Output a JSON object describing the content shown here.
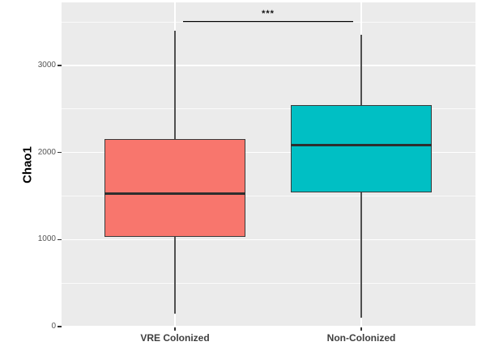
{
  "figure": {
    "background": "#FFFFFF",
    "panel_background": "#EBEBEB",
    "grid_color": "#FFFFFF"
  },
  "chart_data": {
    "type": "boxplot",
    "title": "",
    "xlabel": "",
    "ylabel": "Chao1",
    "ylim": [
      0,
      3720
    ],
    "yticks": [
      0,
      1000,
      2000,
      3000
    ],
    "ytick_labels": [
      "0",
      "1000",
      "2000",
      "3000"
    ],
    "y_minor_ticks": [
      500,
      1500,
      2500,
      3500
    ],
    "grid": true,
    "legend_position": "none",
    "categories": [
      "VRE Colonized",
      "Non-Colonized"
    ],
    "series": [
      {
        "name": "VRE Colonized",
        "color": "#F8766D",
        "whisker_low": 150,
        "q1": 1030,
        "median": 1530,
        "q3": 2150,
        "whisker_high": 3400,
        "outliers": []
      },
      {
        "name": "Non-Colonized",
        "color": "#00BFC4",
        "whisker_low": 100,
        "q1": 1540,
        "median": 2080,
        "q3": 2540,
        "whisker_high": 3350,
        "outliers": []
      }
    ],
    "annotation": {
      "label": "***",
      "y_value": 3510,
      "between": [
        "VRE Colonized",
        "Non-Colonized"
      ]
    },
    "style": {
      "box_border_color": "#3A3A3A",
      "median_color": "#2E2E2E",
      "whisker_color": "#4F4F4F",
      "axis_text_color": "#555555",
      "category_text_color": "#3F3F3F",
      "significance_color": "#000000"
    }
  }
}
